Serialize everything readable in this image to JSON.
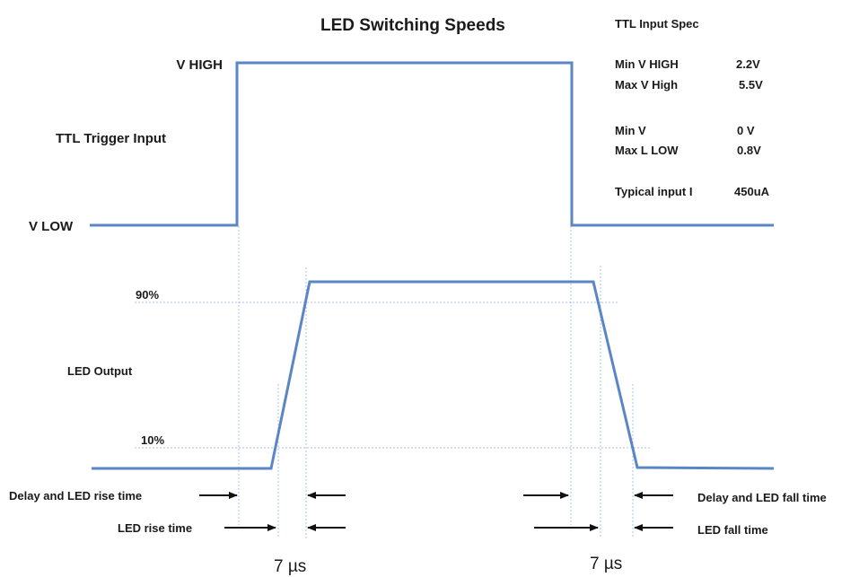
{
  "title": "LED Switching Speeds",
  "signals": {
    "v_high": "V HIGH",
    "v_low": "V LOW",
    "ttl_trigger_input": "TTL Trigger Input",
    "led_output": "LED Output",
    "pct_90": "90%",
    "pct_10": "10%"
  },
  "spec": {
    "heading": "TTL Input Spec",
    "rows": [
      {
        "label": "Min V HIGH",
        "value": "2.2V"
      },
      {
        "label": "Max V High",
        "value": "5.5V"
      },
      {
        "label": "Min V",
        "value": "0 V"
      },
      {
        "label": "Max L LOW",
        "value": "0.8V"
      },
      {
        "label": "Typical input I",
        "value": "450uA"
      }
    ]
  },
  "timing": {
    "delay_rise": "Delay and LED rise time",
    "led_rise": "LED rise time",
    "delay_fall": "Delay and LED fall time",
    "led_fall": "LED fall time",
    "rise_duration": "7 µs",
    "fall_duration": "7 µs"
  },
  "colors": {
    "waveform": "#5b86c5",
    "guide": "#a9c3e6",
    "arrow": "#111111"
  }
}
